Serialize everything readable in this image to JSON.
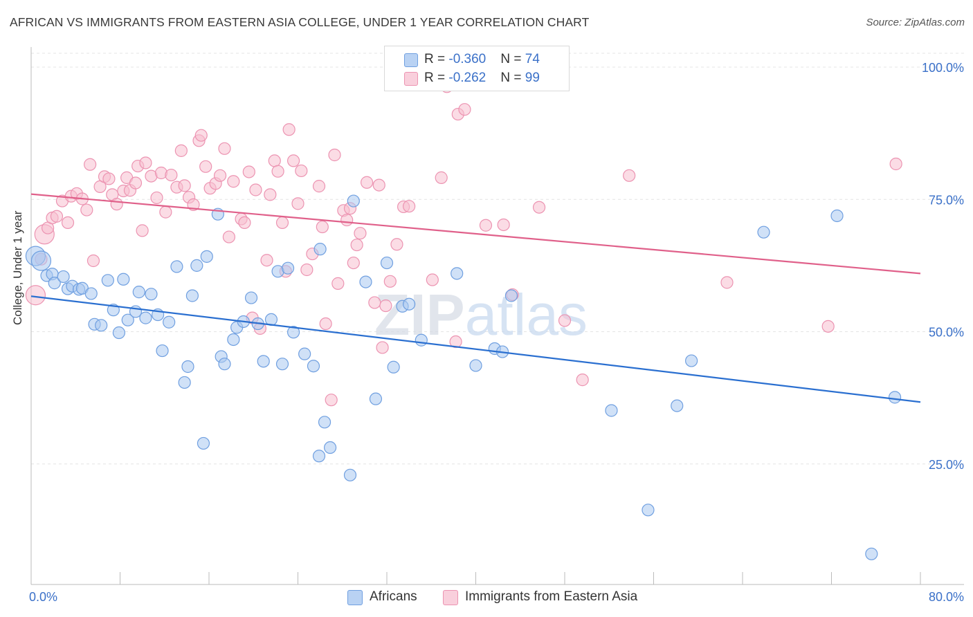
{
  "title": "AFRICAN VS IMMIGRANTS FROM EASTERN ASIA COLLEGE, UNDER 1 YEAR CORRELATION CHART",
  "source": "Source: ZipAtlas.com",
  "watermark": "ZIPatlas",
  "legend": {
    "africans": {
      "r_label": "R = ",
      "r_value": "-0.360",
      "n_label": "N = ",
      "n_value": "74"
    },
    "immigrants": {
      "r_label": "R = ",
      "r_value": "-0.262",
      "n_label": "N = ",
      "n_value": "99"
    }
  },
  "colors": {
    "blue_fill": "#a9c8f0",
    "blue_stroke": "#6f9fe0",
    "blue_line": "#2a6fd0",
    "pink_fill": "#f7bfd0",
    "pink_stroke": "#ec93b1",
    "pink_line": "#e0608a",
    "axis_text": "#3a70c8"
  },
  "chart_data": {
    "type": "scatter",
    "title": "AFRICAN VS IMMIGRANTS FROM EASTERN ASIA COLLEGE, UNDER 1 YEAR CORRELATION CHART",
    "xlabel": "",
    "ylabel": "College, Under 1 year",
    "xlim": [
      0,
      80
    ],
    "ylim": [
      0,
      100
    ],
    "x_tick_labels": [
      "0.0%",
      "80.0%"
    ],
    "y_tick_labels": [
      "100.0%",
      "75.0%",
      "50.0%",
      "25.0%"
    ],
    "y_ticks": [
      100,
      75,
      50,
      25
    ],
    "grid": true,
    "legend_placement": "top-center",
    "series": [
      {
        "name": "Africans",
        "trend": {
          "x": [
            0,
            80
          ],
          "y": [
            56.7,
            36.7
          ]
        },
        "points": [
          [
            0.4,
            64.3
          ],
          [
            0.9,
            63.4
          ],
          [
            1.4,
            60.6
          ],
          [
            1.9,
            60.9
          ],
          [
            2.1,
            59.2
          ],
          [
            2.9,
            60.4
          ],
          [
            3.3,
            58.1
          ],
          [
            3.7,
            58.6
          ],
          [
            4.3,
            58.0
          ],
          [
            4.6,
            58.2
          ],
          [
            5.4,
            57.2
          ],
          [
            5.7,
            51.4
          ],
          [
            6.3,
            51.2
          ],
          [
            6.9,
            59.7
          ],
          [
            7.4,
            54.1
          ],
          [
            7.9,
            49.8
          ],
          [
            8.3,
            59.9
          ],
          [
            8.7,
            52.2
          ],
          [
            9.4,
            53.8
          ],
          [
            9.7,
            57.5
          ],
          [
            10.3,
            52.6
          ],
          [
            10.8,
            57.1
          ],
          [
            11.4,
            53.2
          ],
          [
            11.8,
            46.4
          ],
          [
            12.4,
            51.8
          ],
          [
            13.1,
            62.3
          ],
          [
            13.8,
            40.4
          ],
          [
            14.1,
            43.4
          ],
          [
            14.5,
            56.8
          ],
          [
            14.9,
            62.5
          ],
          [
            15.5,
            28.9
          ],
          [
            15.8,
            64.2
          ],
          [
            16.8,
            72.2
          ],
          [
            17.1,
            45.3
          ],
          [
            17.4,
            43.9
          ],
          [
            18.2,
            48.5
          ],
          [
            18.5,
            50.8
          ],
          [
            19.1,
            51.9
          ],
          [
            19.8,
            56.4
          ],
          [
            20.4,
            51.5
          ],
          [
            20.9,
            44.4
          ],
          [
            21.6,
            52.3
          ],
          [
            22.2,
            61.4
          ],
          [
            22.6,
            43.9
          ],
          [
            23.1,
            62.0
          ],
          [
            23.6,
            49.9
          ],
          [
            24.6,
            45.8
          ],
          [
            25.4,
            43.5
          ],
          [
            26.0,
            65.6
          ],
          [
            26.4,
            32.9
          ],
          [
            26.9,
            28.1
          ],
          [
            25.9,
            26.5
          ],
          [
            28.7,
            22.9
          ],
          [
            29.0,
            74.7
          ],
          [
            30.1,
            59.4
          ],
          [
            31.0,
            37.3
          ],
          [
            32.0,
            63.0
          ],
          [
            32.6,
            43.3
          ],
          [
            33.4,
            54.8
          ],
          [
            34.0,
            55.2
          ],
          [
            35.1,
            48.4
          ],
          [
            38.3,
            61.0
          ],
          [
            40.0,
            43.6
          ],
          [
            41.7,
            46.8
          ],
          [
            42.4,
            46.2
          ],
          [
            43.2,
            56.8
          ],
          [
            52.2,
            35.1
          ],
          [
            55.5,
            16.3
          ],
          [
            58.1,
            36.0
          ],
          [
            59.4,
            44.5
          ],
          [
            65.9,
            68.8
          ],
          [
            72.5,
            71.9
          ],
          [
            75.6,
            8.0
          ],
          [
            77.7,
            37.6
          ]
        ],
        "sizes": {
          "large_points": [
            0,
            1
          ]
        }
      },
      {
        "name": "Immigrants from Eastern Asia",
        "trend": {
          "x": [
            0,
            80
          ],
          "y": [
            76.0,
            61.0
          ]
        },
        "points": [
          [
            0.4,
            56.9
          ],
          [
            0.9,
            63.7
          ],
          [
            1.2,
            68.4
          ],
          [
            1.5,
            69.6
          ],
          [
            1.9,
            71.5
          ],
          [
            2.3,
            71.8
          ],
          [
            2.8,
            74.7
          ],
          [
            3.3,
            70.6
          ],
          [
            3.6,
            75.6
          ],
          [
            4.1,
            76.1
          ],
          [
            4.6,
            75.1
          ],
          [
            5.0,
            73.0
          ],
          [
            5.3,
            81.6
          ],
          [
            5.6,
            63.4
          ],
          [
            6.2,
            77.4
          ],
          [
            6.6,
            79.3
          ],
          [
            7.0,
            78.9
          ],
          [
            7.3,
            75.9
          ],
          [
            7.7,
            74.1
          ],
          [
            8.3,
            76.6
          ],
          [
            8.6,
            79.1
          ],
          [
            8.9,
            76.7
          ],
          [
            9.4,
            78.1
          ],
          [
            9.6,
            81.3
          ],
          [
            10.0,
            69.1
          ],
          [
            10.3,
            81.9
          ],
          [
            10.8,
            79.4
          ],
          [
            11.3,
            75.3
          ],
          [
            11.7,
            80.0
          ],
          [
            12.1,
            72.6
          ],
          [
            12.6,
            79.6
          ],
          [
            13.1,
            77.3
          ],
          [
            13.5,
            84.2
          ],
          [
            13.8,
            77.6
          ],
          [
            14.2,
            75.4
          ],
          [
            14.6,
            74.0
          ],
          [
            15.1,
            86.1
          ],
          [
            15.3,
            87.1
          ],
          [
            15.7,
            81.2
          ],
          [
            16.1,
            77.1
          ],
          [
            16.6,
            78.0
          ],
          [
            17.0,
            79.5
          ],
          [
            17.4,
            84.6
          ],
          [
            17.8,
            67.9
          ],
          [
            18.2,
            78.4
          ],
          [
            18.9,
            71.3
          ],
          [
            19.2,
            70.6
          ],
          [
            19.6,
            80.2
          ],
          [
            19.9,
            52.6
          ],
          [
            20.2,
            76.8
          ],
          [
            20.6,
            50.6
          ],
          [
            21.2,
            63.5
          ],
          [
            21.5,
            75.9
          ],
          [
            21.9,
            82.3
          ],
          [
            22.2,
            80.3
          ],
          [
            22.6,
            70.6
          ],
          [
            22.9,
            61.4
          ],
          [
            23.2,
            88.2
          ],
          [
            23.6,
            82.3
          ],
          [
            24.0,
            74.2
          ],
          [
            24.3,
            80.4
          ],
          [
            24.8,
            61.7
          ],
          [
            25.3,
            64.7
          ],
          [
            25.9,
            77.5
          ],
          [
            26.2,
            69.8
          ],
          [
            26.5,
            51.5
          ],
          [
            27.0,
            37.1
          ],
          [
            27.3,
            83.4
          ],
          [
            27.6,
            59.1
          ],
          [
            28.1,
            72.9
          ],
          [
            28.4,
            71.1
          ],
          [
            28.7,
            73.3
          ],
          [
            29.0,
            63.0
          ],
          [
            29.3,
            66.4
          ],
          [
            29.6,
            68.6
          ],
          [
            30.2,
            78.2
          ],
          [
            30.9,
            55.5
          ],
          [
            31.3,
            77.7
          ],
          [
            31.6,
            47.0
          ],
          [
            31.9,
            54.9
          ],
          [
            32.3,
            59.5
          ],
          [
            32.9,
            66.5
          ],
          [
            33.5,
            73.6
          ],
          [
            34.0,
            73.7
          ],
          [
            36.1,
            59.8
          ],
          [
            36.9,
            79.1
          ],
          [
            37.4,
            96.3
          ],
          [
            38.2,
            48.1
          ],
          [
            38.4,
            91.1
          ],
          [
            39.0,
            92.0
          ],
          [
            40.9,
            70.1
          ],
          [
            42.5,
            70.2
          ],
          [
            43.3,
            57.0
          ],
          [
            45.7,
            73.5
          ],
          [
            48.0,
            52.1
          ],
          [
            49.6,
            40.9
          ],
          [
            53.8,
            79.5
          ],
          [
            62.6,
            59.3
          ],
          [
            71.7,
            51.0
          ],
          [
            77.8,
            81.7
          ]
        ],
        "sizes": {
          "large_points": [
            0,
            2
          ]
        }
      }
    ]
  },
  "bottom_legend": {
    "africans": "Africans",
    "immigrants": "Immigrants from Eastern Asia"
  }
}
